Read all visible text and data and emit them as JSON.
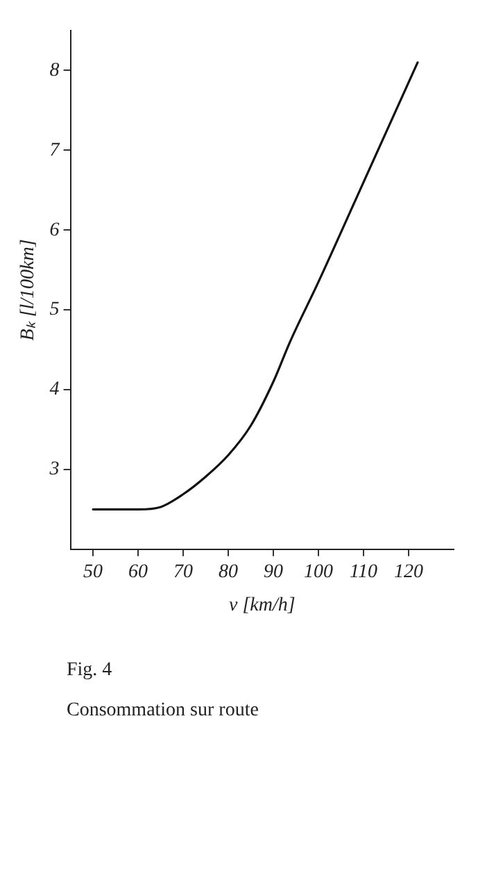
{
  "chart_data": {
    "type": "line",
    "xlabel": "v [km/h]",
    "ylabel": "Bₖ [l/100km]",
    "x": [
      50,
      55,
      60,
      65,
      70,
      75,
      80,
      85,
      90,
      93.7,
      100,
      110,
      122
    ],
    "series": [
      {
        "color": "#111111",
        "values": [
          2.5,
          2.5,
          2.5,
          2.53,
          2.69,
          2.91,
          3.18,
          3.55,
          4.1,
          4.6,
          5.35,
          6.6,
          8.1
        ]
      }
    ],
    "xlim": [
      45,
      130
    ],
    "xticks": [
      50,
      60,
      70,
      80,
      90,
      100,
      110,
      120
    ],
    "ylim": [
      2,
      8.5
    ],
    "yticks": [
      3,
      4,
      5,
      6,
      7,
      8
    ],
    "grid": false,
    "legend": false,
    "marker": "none",
    "line_style": "solid",
    "annotations": [
      "Fig. 4",
      "Consommation sur route"
    ]
  }
}
